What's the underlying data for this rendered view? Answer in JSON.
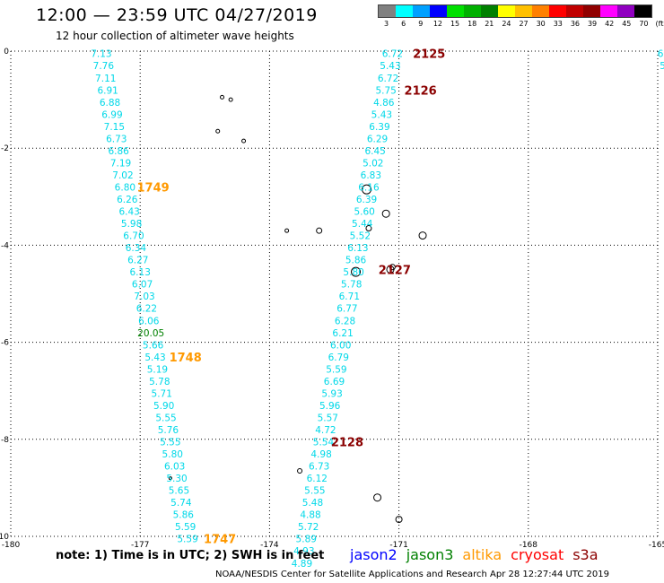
{
  "header": {
    "title": "12:00 — 23:59 UTC 04/27/2019",
    "subtitle": "12 hour collection of altimeter wave heights"
  },
  "colorscale": {
    "ticks": [
      "3",
      "6",
      "9",
      "12",
      "15",
      "18",
      "21",
      "24",
      "27",
      "30",
      "33",
      "36",
      "39",
      "42",
      "45",
      "70",
      "(ft)"
    ],
    "colors": [
      "#808080",
      "#00ffff",
      "#00a0ff",
      "#0000ff",
      "#00e000",
      "#00b000",
      "#008000",
      "#ffff00",
      "#ffc000",
      "#ff8000",
      "#ff0000",
      "#c00000",
      "#900000",
      "#ff00ff",
      "#9000c0",
      "#000000"
    ]
  },
  "footer": {
    "note": "note:  1) Time is in UTC;  2) SWH is in feet",
    "credit": "NOAA/NESDIS Center for Satellite Applications and Research    Apr 28 12:27:44 UTC 2019"
  },
  "legend": [
    {
      "name": "jason2",
      "color": "#0000ff"
    },
    {
      "name": "jason3",
      "color": "#008000"
    },
    {
      "name": "altika",
      "color": "#ff9900"
    },
    {
      "name": "cryosat",
      "color": "#ff0000"
    },
    {
      "name": "s3a",
      "color": "#8b0000"
    }
  ],
  "chart_data": {
    "type": "scatter",
    "title": "12:00 — 23:59 UTC 04/27/2019",
    "subtitle": "12 hour collection of altimeter wave heights",
    "xlabel": "",
    "ylabel": "",
    "xlim": [
      -180,
      -165
    ],
    "ylim": [
      -10,
      0
    ],
    "x_ticks": [
      "-180",
      "-177",
      "-174",
      "-171",
      "-168",
      "-165"
    ],
    "y_ticks": [
      "0",
      "-2",
      "-4",
      "-6",
      "-8",
      "-10"
    ],
    "grid": true,
    "point_color": "#00d8e8",
    "series": [
      {
        "name": "",
        "values": [
          {
            "x": -177.9,
            "y": -0.05,
            "v": "7.13"
          },
          {
            "x": -177.85,
            "y": -0.3,
            "v": "7.76"
          },
          {
            "x": -177.8,
            "y": -0.55,
            "v": "7.11"
          },
          {
            "x": -177.75,
            "y": -0.8,
            "v": "6.91"
          },
          {
            "x": -177.7,
            "y": -1.05,
            "v": "6.88"
          },
          {
            "x": -177.65,
            "y": -1.3,
            "v": "6.99"
          },
          {
            "x": -177.6,
            "y": -1.55,
            "v": "7.15"
          },
          {
            "x": -177.55,
            "y": -1.8,
            "v": "6.73"
          },
          {
            "x": -177.5,
            "y": -2.05,
            "v": "6.86"
          },
          {
            "x": -177.45,
            "y": -2.3,
            "v": "7.19"
          },
          {
            "x": -177.4,
            "y": -2.55,
            "v": "7.02"
          },
          {
            "x": -177.35,
            "y": -2.8,
            "v": "6.80"
          },
          {
            "x": -177.3,
            "y": -3.05,
            "v": "6.26"
          },
          {
            "x": -177.25,
            "y": -3.3,
            "v": "6.43"
          },
          {
            "x": -177.2,
            "y": -3.55,
            "v": "5.98"
          },
          {
            "x": -177.15,
            "y": -3.8,
            "v": "6.70"
          },
          {
            "x": -177.1,
            "y": -4.05,
            "v": "6.34"
          },
          {
            "x": -177.05,
            "y": -4.3,
            "v": "6.27"
          },
          {
            "x": -177.0,
            "y": -4.55,
            "v": "6.13"
          },
          {
            "x": -176.95,
            "y": -4.8,
            "v": "6.07"
          },
          {
            "x": -176.9,
            "y": -5.05,
            "v": "7.03"
          },
          {
            "x": -176.85,
            "y": -5.3,
            "v": "6.22"
          },
          {
            "x": -176.8,
            "y": -5.55,
            "v": "6.06"
          },
          {
            "x": -176.75,
            "y": -5.8,
            "v": "20.05",
            "color": "#008000"
          },
          {
            "x": -176.7,
            "y": -6.05,
            "v": "5.66"
          },
          {
            "x": -176.65,
            "y": -6.3,
            "v": "5.43"
          },
          {
            "x": -176.6,
            "y": -6.55,
            "v": "5.19"
          },
          {
            "x": -176.55,
            "y": -6.8,
            "v": "5.78"
          },
          {
            "x": -176.5,
            "y": -7.05,
            "v": "5.71"
          },
          {
            "x": -176.45,
            "y": -7.3,
            "v": "5.90"
          },
          {
            "x": -176.4,
            "y": -7.55,
            "v": "5.55"
          },
          {
            "x": -176.35,
            "y": -7.8,
            "v": "5.76"
          },
          {
            "x": -176.3,
            "y": -8.05,
            "v": "5.55"
          },
          {
            "x": -176.25,
            "y": -8.3,
            "v": "5.80"
          },
          {
            "x": -176.2,
            "y": -8.55,
            "v": "6.03"
          },
          {
            "x": -176.15,
            "y": -8.8,
            "v": "5.30"
          },
          {
            "x": -176.1,
            "y": -9.05,
            "v": "5.65"
          },
          {
            "x": -176.05,
            "y": -9.3,
            "v": "5.74"
          },
          {
            "x": -176.0,
            "y": -9.55,
            "v": "5.86"
          },
          {
            "x": -175.95,
            "y": -9.8,
            "v": "5.59"
          },
          {
            "x": -175.9,
            "y": -10.05,
            "v": "5.59"
          },
          {
            "x": -171.15,
            "y": -0.05,
            "v": "6.72"
          },
          {
            "x": -171.2,
            "y": -0.3,
            "v": "5.43"
          },
          {
            "x": -171.25,
            "y": -0.55,
            "v": "6.72"
          },
          {
            "x": -171.3,
            "y": -0.8,
            "v": "5.75"
          },
          {
            "x": -171.35,
            "y": -1.05,
            "v": "4.86"
          },
          {
            "x": -171.4,
            "y": -1.3,
            "v": "5.43"
          },
          {
            "x": -171.45,
            "y": -1.55,
            "v": "6.39"
          },
          {
            "x": -171.5,
            "y": -1.8,
            "v": "6.29"
          },
          {
            "x": -171.55,
            "y": -2.05,
            "v": "6.45"
          },
          {
            "x": -171.6,
            "y": -2.3,
            "v": "5.02"
          },
          {
            "x": -171.65,
            "y": -2.55,
            "v": "6.83"
          },
          {
            "x": -171.7,
            "y": -2.8,
            "v": "6.16"
          },
          {
            "x": -171.75,
            "y": -3.05,
            "v": "6.39"
          },
          {
            "x": -171.8,
            "y": -3.3,
            "v": "5.60"
          },
          {
            "x": -171.85,
            "y": -3.55,
            "v": "5.44"
          },
          {
            "x": -171.9,
            "y": -3.8,
            "v": "5.52"
          },
          {
            "x": -171.95,
            "y": -4.05,
            "v": "6.13"
          },
          {
            "x": -172.0,
            "y": -4.3,
            "v": "5.86"
          },
          {
            "x": -172.05,
            "y": -4.55,
            "v": "5.80"
          },
          {
            "x": -172.1,
            "y": -4.8,
            "v": "5.78"
          },
          {
            "x": -172.15,
            "y": -5.05,
            "v": "6.71"
          },
          {
            "x": -172.2,
            "y": -5.3,
            "v": "6.77"
          },
          {
            "x": -172.25,
            "y": -5.55,
            "v": "6.28"
          },
          {
            "x": -172.3,
            "y": -5.8,
            "v": "6.21"
          },
          {
            "x": -172.35,
            "y": -6.05,
            "v": "6.00"
          },
          {
            "x": -172.4,
            "y": -6.3,
            "v": "6.79"
          },
          {
            "x": -172.45,
            "y": -6.55,
            "v": "5.59"
          },
          {
            "x": -172.5,
            "y": -6.8,
            "v": "6.69"
          },
          {
            "x": -172.55,
            "y": -7.05,
            "v": "5.93"
          },
          {
            "x": -172.6,
            "y": -7.3,
            "v": "5.96"
          },
          {
            "x": -172.65,
            "y": -7.55,
            "v": "5.57"
          },
          {
            "x": -172.7,
            "y": -7.8,
            "v": "4.72"
          },
          {
            "x": -172.75,
            "y": -8.05,
            "v": "5.54"
          },
          {
            "x": -172.8,
            "y": -8.3,
            "v": "4.98"
          },
          {
            "x": -172.85,
            "y": -8.55,
            "v": "6.73"
          },
          {
            "x": -172.9,
            "y": -8.8,
            "v": "6.12"
          },
          {
            "x": -172.95,
            "y": -9.05,
            "v": "5.55"
          },
          {
            "x": -173.0,
            "y": -9.3,
            "v": "5.48"
          },
          {
            "x": -173.05,
            "y": -9.55,
            "v": "4.88"
          },
          {
            "x": -173.1,
            "y": -9.8,
            "v": "5.72"
          },
          {
            "x": -173.15,
            "y": -10.05,
            "v": "5.89"
          },
          {
            "x": -173.2,
            "y": -10.3,
            "v": "4.93"
          },
          {
            "x": -173.25,
            "y": -10.55,
            "v": "4.89"
          },
          {
            "x": -164.9,
            "y": -0.05,
            "v": "6."
          },
          {
            "x": -164.85,
            "y": -0.3,
            "v": "5."
          }
        ]
      }
    ],
    "time_labels": [
      {
        "x": -170.3,
        "y": -0.05,
        "v": "2125",
        "color": "#8b0000"
      },
      {
        "x": -170.5,
        "y": -0.8,
        "v": "2126",
        "color": "#8b0000"
      },
      {
        "x": -176.7,
        "y": -2.8,
        "v": "1749",
        "color": "#ff9900"
      },
      {
        "x": -171.1,
        "y": -4.5,
        "v": "2127",
        "color": "#8b0000"
      },
      {
        "x": -175.95,
        "y": -6.3,
        "v": "1748",
        "color": "#ff9900"
      },
      {
        "x": -172.2,
        "y": -8.05,
        "v": "2128",
        "color": "#8b0000"
      },
      {
        "x": -175.15,
        "y": -10.05,
        "v": "1747",
        "color": "#ff9900"
      }
    ]
  }
}
